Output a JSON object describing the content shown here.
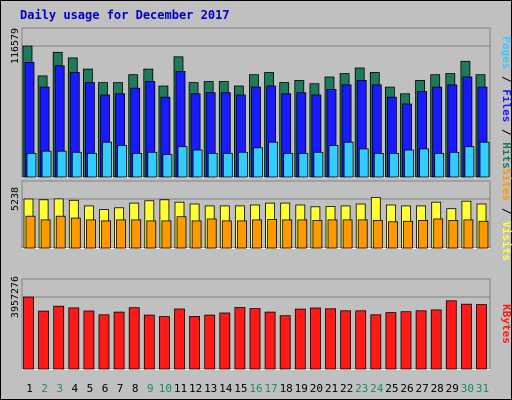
{
  "chart_data": {
    "type": "bar",
    "title": "Daily usage for December 2017",
    "colors": {
      "hits": "#1f7a5a",
      "files": "#1a1aff",
      "pages": "#33ccff",
      "visits": "#ffff33",
      "sites": "#ff9900",
      "kbytes": "#ff1a1a",
      "plot_bg": "#c0c0c0",
      "title": "#0000cc",
      "weekend_day": "#1f8a5a",
      "weekday": "#000000"
    },
    "categories": [
      "1",
      "2",
      "3",
      "4",
      "5",
      "6",
      "7",
      "8",
      "9",
      "10",
      "11",
      "12",
      "13",
      "14",
      "15",
      "16",
      "17",
      "18",
      "19",
      "20",
      "21",
      "22",
      "23",
      "24",
      "25",
      "26",
      "27",
      "28",
      "29",
      "30",
      "31"
    ],
    "weekend_days": [
      2,
      3,
      9,
      10,
      16,
      17,
      23,
      24,
      30,
      31
    ],
    "panels": [
      {
        "id": "requests",
        "ymax": 116579,
        "ymax_label": "116579",
        "legend": [
          {
            "name": "Pages",
            "color": "#33ccff"
          },
          {
            "name": " / ",
            "color": "#000000"
          },
          {
            "name": "Files",
            "color": "#1a1aff"
          },
          {
            "name": " / ",
            "color": "#000000"
          },
          {
            "name": "Hits",
            "color": "#1f7a5a"
          }
        ],
        "series": [
          {
            "name": "Hits",
            "color": "#1f7a5a",
            "values": [
              116579,
              90000,
              111000,
              106000,
              96000,
              84000,
              84000,
              91000,
              96000,
              81000,
              107000,
              84000,
              85000,
              85000,
              81000,
              91000,
              93000,
              84000,
              86000,
              83000,
              89000,
              92000,
              97000,
              93000,
              80000,
              74000,
              86000,
              91000,
              92000,
              103000,
              91000
            ]
          },
          {
            "name": "Files",
            "color": "#1a1aff",
            "values": [
              102000,
              80000,
              99000,
              93000,
              84000,
              73000,
              74000,
              79000,
              85000,
              71000,
              94000,
              74000,
              75000,
              75000,
              73000,
              80000,
              81000,
              74000,
              75000,
              73000,
              78000,
              82000,
              86000,
              82000,
              71000,
              65000,
              76000,
              80000,
              82000,
              89000,
              80000
            ]
          },
          {
            "name": "Pages",
            "color": "#33ccff",
            "values": [
              21000,
              23000,
              23000,
              22000,
              21000,
              31000,
              28000,
              21000,
              22000,
              20000,
              27000,
              24000,
              21000,
              21000,
              22000,
              26000,
              31000,
              21000,
              21000,
              22000,
              28000,
              31000,
              25000,
              21000,
              21000,
              24000,
              25000,
              21000,
              22000,
              27000,
              31000
            ]
          }
        ]
      },
      {
        "id": "visitors",
        "ymax": 5238,
        "ymax_label": "5238",
        "legend": [
          {
            "name": "Sites",
            "color": "#ff9900"
          },
          {
            "name": " / ",
            "color": "#000000"
          },
          {
            "name": "Visits",
            "color": "#ffff33"
          }
        ],
        "series": [
          {
            "name": "Visits",
            "color": "#ffff33",
            "values": [
              5238,
              5150,
              5250,
              5100,
              4500,
              4100,
              4300,
              4800,
              5050,
              5150,
              4900,
              4700,
              4500,
              4500,
              4500,
              4600,
              4800,
              4800,
              4600,
              4400,
              4450,
              4500,
              4700,
              5400,
              4600,
              4500,
              4500,
              4900,
              4200,
              5000,
              4700
            ]
          },
          {
            "name": "Sites",
            "color": "#ff9900",
            "values": [
              3400,
              3000,
              3400,
              3200,
              3000,
              2900,
              3000,
              3000,
              2900,
              2900,
              3350,
              2900,
              3100,
              2900,
              2900,
              3000,
              3050,
              3000,
              3000,
              2950,
              3000,
              3000,
              3000,
              2950,
              2800,
              2850,
              2950,
              3100,
              2950,
              3000,
              2850
            ]
          }
        ]
      },
      {
        "id": "kbytes",
        "ymax": 3957276,
        "ymax_label": "3957276",
        "legend": [
          {
            "name": "KBytes",
            "color": "#ff1a1a"
          }
        ],
        "series": [
          {
            "name": "KBytes",
            "color": "#ff1a1a",
            "values": [
              3957276,
              3180000,
              3450000,
              3360000,
              3190000,
              2980000,
              3130000,
              3370000,
              2960000,
              2880000,
              3300000,
              2890000,
              2960000,
              3080000,
              3380000,
              3320000,
              3130000,
              2930000,
              3290000,
              3350000,
              3310000,
              3200000,
              3200000,
              2980000,
              3100000,
              3150000,
              3200000,
              3250000,
              3750000,
              3560000,
              3540000
            ]
          }
        ]
      }
    ]
  }
}
